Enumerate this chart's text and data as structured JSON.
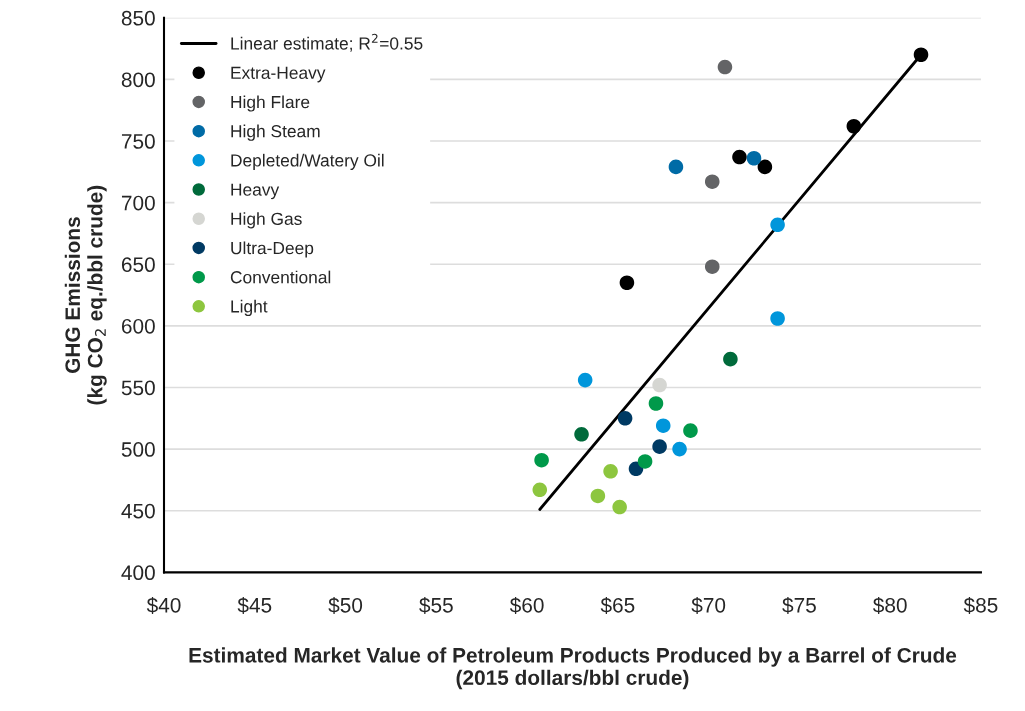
{
  "chart_data": {
    "type": "scatter",
    "xlabel": "Estimated Market Value of Petroleum Products Produced by a Barrel of Crude\n(2015 dollars/bbl crude)",
    "ylabel": "GHG Emissions\n(kg CO$_{2}$ eq./bbl crude)",
    "xlim": [
      40,
      85
    ],
    "ylim": [
      400,
      850
    ],
    "xticks": [
      {
        "value": 40,
        "label": "$40"
      },
      {
        "value": 45,
        "label": "$45"
      },
      {
        "value": 50,
        "label": "$50"
      },
      {
        "value": 55,
        "label": "$55"
      },
      {
        "value": 60,
        "label": "$60"
      },
      {
        "value": 65,
        "label": "$65"
      },
      {
        "value": 70,
        "label": "$70"
      },
      {
        "value": 75,
        "label": "$75"
      },
      {
        "value": 80,
        "label": "$80"
      },
      {
        "value": 85,
        "label": "$85"
      }
    ],
    "yticks": [
      400,
      450,
      500,
      550,
      600,
      650,
      700,
      750,
      800,
      850
    ],
    "grid": "y",
    "legend": "top left",
    "marker": "circle",
    "series": [
      {
        "name": "Linear estimate; R$^{2}$=0.55",
        "type": "line",
        "color": "#000000",
        "marker": "none",
        "x": [
          60.7,
          81.7
        ],
        "values": [
          451,
          820
        ]
      },
      {
        "name": "Extra-Heavy",
        "color": "#000000",
        "x": [
          81.7,
          78.0,
          71.7,
          73.1,
          65.5
        ],
        "values": [
          820,
          762,
          737,
          729,
          635
        ]
      },
      {
        "name": "High Flare",
        "color": "#636466",
        "x": [
          70.9,
          70.2,
          70.2
        ],
        "values": [
          810,
          717,
          648
        ]
      },
      {
        "name": "High Steam",
        "color": "#006ba6",
        "x": [
          68.2,
          72.5
        ],
        "values": [
          729,
          736
        ]
      },
      {
        "name": "Depleted/Watery Oil",
        "color": "#0096db",
        "x": [
          73.8,
          73.8,
          63.2,
          67.5,
          68.4
        ],
        "values": [
          682,
          606,
          556,
          519,
          500
        ]
      },
      {
        "name": "Heavy",
        "color": "#006a3b",
        "x": [
          71.2,
          63.0
        ],
        "values": [
          573,
          512
        ]
      },
      {
        "name": "High Gas",
        "color": "#d5d6d2",
        "x": [
          67.3
        ],
        "values": [
          552
        ]
      },
      {
        "name": "Ultra-Deep",
        "color": "#003a63",
        "x": [
          65.4,
          67.3,
          66.0
        ],
        "values": [
          525,
          502,
          484
        ]
      },
      {
        "name": "Conventional",
        "color": "#00994a",
        "x": [
          67.1,
          69.0,
          66.5,
          60.8
        ],
        "values": [
          537,
          515,
          490,
          491
        ]
      },
      {
        "name": "Light",
        "color": "#8dc63f",
        "x": [
          60.7,
          64.6,
          63.9,
          65.1
        ],
        "values": [
          467,
          482,
          462,
          453
        ]
      }
    ]
  }
}
